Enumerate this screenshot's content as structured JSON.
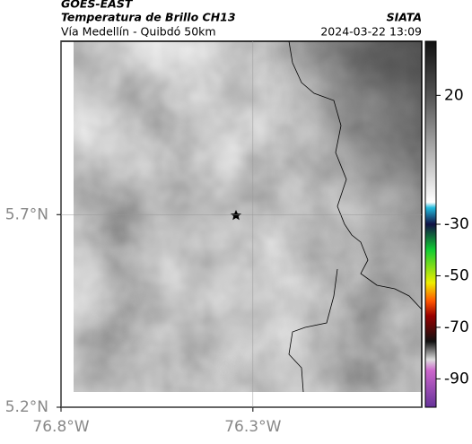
{
  "header": {
    "source": "GOES-EAST",
    "title": "Temperatura de Brillo CH13",
    "subtitle": "Vía Medellín - Quibdó 50km",
    "agency": "SIATA",
    "datetime": "2024-03-22 13:09"
  },
  "map": {
    "xlim": [
      -76.8,
      -75.86
    ],
    "ylim": [
      5.2,
      6.15
    ],
    "xticks": [
      {
        "value": -76.8,
        "label": "76.8°W"
      },
      {
        "value": -76.3,
        "label": "76.3°W"
      }
    ],
    "yticks": [
      {
        "value": 5.7,
        "label": "5.7°N"
      },
      {
        "value": 5.2,
        "label": "5.2°N"
      }
    ],
    "grid": true
  },
  "colorbar": {
    "clim": [
      41,
      -101
    ],
    "ticks": [
      20,
      -30,
      -50,
      -70,
      -90
    ]
  }
}
